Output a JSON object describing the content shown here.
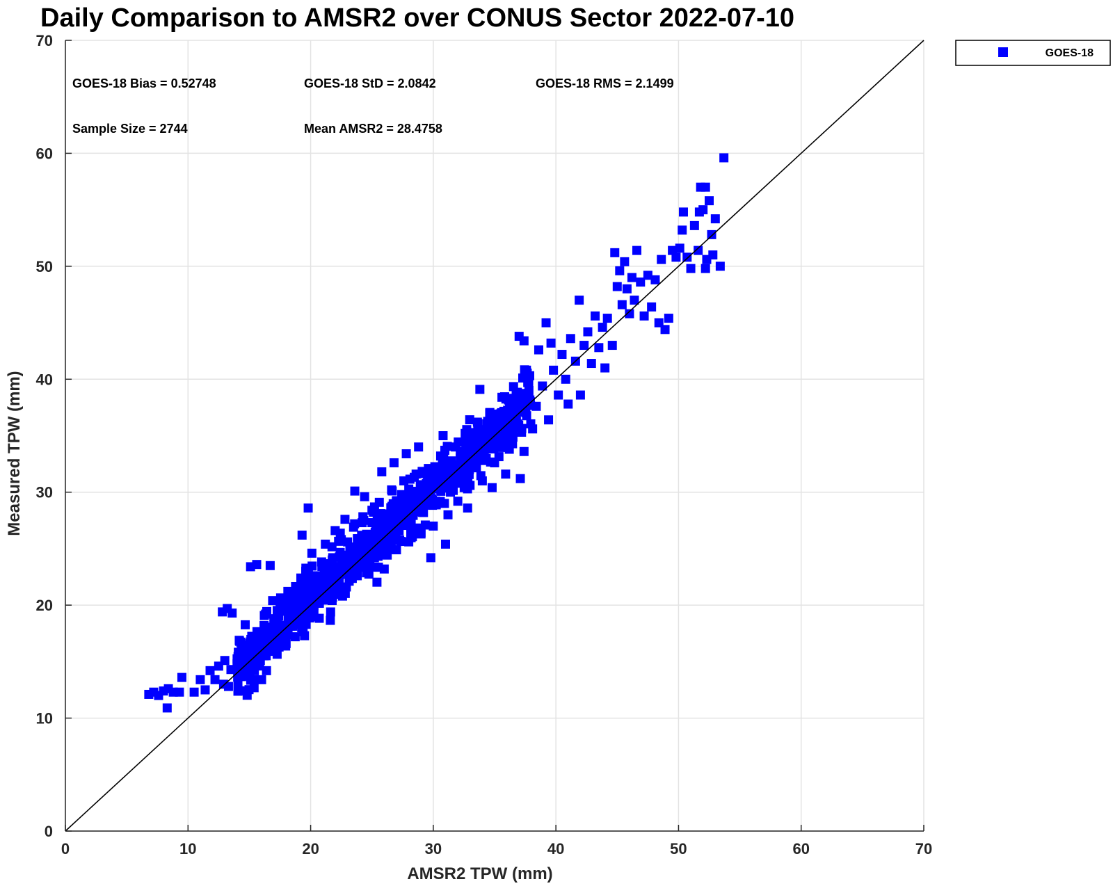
{
  "chart_data": {
    "type": "scatter",
    "title": "Daily Comparison to AMSR2 over CONUS Sector 2022-07-10",
    "xlabel": "AMSR2 TPW (mm)",
    "ylabel": "Measured TPW (mm)",
    "xlim": [
      0,
      70
    ],
    "ylim": [
      0,
      70
    ],
    "xticks": [
      "0",
      "10",
      "20",
      "30",
      "40",
      "50",
      "60",
      "70"
    ],
    "yticks": [
      "0",
      "10",
      "20",
      "30",
      "40",
      "50",
      "60",
      "70"
    ],
    "grid": true,
    "legend_position": "outside top-right",
    "series": [
      {
        "name": "GOES-18",
        "color": "#0000ff",
        "marker": "square",
        "points": [
          [
            6.8,
            12.1
          ],
          [
            7.2,
            12.3
          ],
          [
            7.6,
            12.0
          ],
          [
            8.0,
            12.4
          ],
          [
            8.4,
            12.6
          ],
          [
            8.3,
            10.9
          ],
          [
            8.8,
            12.3
          ],
          [
            9.5,
            13.6
          ],
          [
            9.3,
            12.3
          ],
          [
            10.5,
            12.3
          ],
          [
            11.0,
            13.4
          ],
          [
            11.4,
            12.5
          ],
          [
            11.8,
            14.2
          ],
          [
            12.2,
            13.4
          ],
          [
            12.8,
            19.4
          ],
          [
            13.2,
            19.7
          ],
          [
            13.6,
            19.3
          ],
          [
            12.5,
            14.6
          ],
          [
            12.9,
            13.0
          ],
          [
            13.3,
            12.8
          ],
          [
            13.0,
            15.1
          ],
          [
            13.5,
            14.3
          ],
          [
            14.0,
            14.8
          ],
          [
            14.4,
            15.3
          ],
          [
            14.2,
            16.8
          ],
          [
            14.8,
            16.1
          ],
          [
            15.2,
            15.4
          ],
          [
            15.6,
            16.9
          ],
          [
            15.3,
            13.4
          ],
          [
            16.0,
            13.4
          ],
          [
            16.4,
            14.2
          ],
          [
            15.1,
            23.4
          ],
          [
            15.6,
            23.6
          ],
          [
            16.7,
            23.5
          ],
          [
            15.8,
            17.6
          ],
          [
            16.2,
            18.2
          ],
          [
            16.6,
            17.4
          ],
          [
            17.0,
            18.8
          ],
          [
            17.3,
            17.6
          ],
          [
            17.8,
            19.6
          ],
          [
            17.5,
            16.7
          ],
          [
            18.0,
            16.6
          ],
          [
            16.9,
            20.4
          ],
          [
            17.6,
            20.0
          ],
          [
            18.2,
            21.0
          ],
          [
            18.5,
            19.8
          ],
          [
            18.8,
            20.6
          ],
          [
            18.4,
            18.5
          ],
          [
            19.0,
            21.5
          ],
          [
            19.2,
            22.4
          ],
          [
            19.5,
            20.2
          ],
          [
            19.8,
            21.8
          ],
          [
            19.6,
            23.0
          ],
          [
            19.8,
            28.6
          ],
          [
            19.3,
            26.2
          ],
          [
            20.1,
            24.6
          ],
          [
            20.4,
            22.6
          ],
          [
            20.8,
            22.0
          ],
          [
            21.0,
            23.6
          ],
          [
            21.2,
            25.4
          ],
          [
            21.5,
            21.2
          ],
          [
            21.8,
            24.2
          ],
          [
            22.0,
            26.6
          ],
          [
            22.2,
            22.3
          ],
          [
            22.5,
            25.8
          ],
          [
            22.8,
            27.6
          ],
          [
            22.6,
            20.8
          ],
          [
            23.0,
            23.4
          ],
          [
            23.2,
            25.0
          ],
          [
            23.5,
            26.9
          ],
          [
            23.6,
            30.1
          ],
          [
            23.8,
            22.6
          ],
          [
            24.0,
            24.8
          ],
          [
            24.2,
            27.3
          ],
          [
            24.4,
            29.6
          ],
          [
            24.6,
            23.6
          ],
          [
            24.8,
            26.0
          ],
          [
            25.0,
            28.4
          ],
          [
            25.2,
            24.2
          ],
          [
            25.4,
            26.6
          ],
          [
            25.6,
            29.1
          ],
          [
            25.8,
            31.8
          ],
          [
            26.0,
            23.2
          ],
          [
            26.2,
            25.4
          ],
          [
            26.4,
            27.8
          ],
          [
            26.6,
            30.2
          ],
          [
            26.8,
            32.6
          ],
          [
            27.0,
            24.9
          ],
          [
            27.2,
            26.9
          ],
          [
            27.4,
            28.9
          ],
          [
            27.6,
            31.0
          ],
          [
            27.8,
            33.4
          ],
          [
            28.0,
            25.6
          ],
          [
            28.2,
            27.4
          ],
          [
            28.4,
            29.6
          ],
          [
            28.6,
            31.6
          ],
          [
            28.8,
            34.0
          ],
          [
            29.0,
            26.3
          ],
          [
            29.2,
            28.2
          ],
          [
            29.4,
            30.2
          ],
          [
            29.6,
            32.1
          ],
          [
            29.8,
            24.2
          ],
          [
            30.0,
            27.0
          ],
          [
            30.2,
            29.2
          ],
          [
            30.4,
            31.2
          ],
          [
            30.6,
            33.2
          ],
          [
            30.8,
            35.0
          ],
          [
            31.0,
            25.4
          ],
          [
            31.2,
            28.0
          ],
          [
            31.4,
            30.0
          ],
          [
            31.6,
            32.0
          ],
          [
            31.8,
            34.0
          ],
          [
            32.0,
            29.2
          ],
          [
            32.2,
            31.0
          ],
          [
            32.4,
            33.0
          ],
          [
            32.6,
            35.2
          ],
          [
            32.8,
            28.6
          ],
          [
            33.0,
            30.6
          ],
          [
            33.2,
            32.6
          ],
          [
            33.4,
            34.4
          ],
          [
            33.6,
            36.2
          ],
          [
            33.8,
            39.1
          ],
          [
            34.0,
            31.0
          ],
          [
            34.2,
            33.0
          ],
          [
            34.4,
            35.0
          ],
          [
            34.6,
            37.0
          ],
          [
            34.8,
            30.4
          ],
          [
            35.0,
            32.6
          ],
          [
            35.2,
            34.6
          ],
          [
            35.4,
            36.4
          ],
          [
            35.6,
            38.4
          ],
          [
            35.9,
            31.6
          ],
          [
            36.2,
            33.8
          ],
          [
            36.5,
            35.8
          ],
          [
            36.8,
            37.8
          ],
          [
            37.1,
            31.2
          ],
          [
            37.4,
            33.6
          ],
          [
            37.0,
            43.8
          ],
          [
            37.4,
            43.4
          ],
          [
            37.6,
            40.8
          ],
          [
            37.8,
            39.0
          ],
          [
            38.1,
            35.6
          ],
          [
            38.4,
            37.6
          ],
          [
            38.6,
            42.6
          ],
          [
            38.9,
            39.4
          ],
          [
            39.2,
            45.0
          ],
          [
            39.6,
            43.2
          ],
          [
            39.4,
            36.4
          ],
          [
            39.8,
            40.8
          ],
          [
            40.2,
            38.6
          ],
          [
            40.5,
            42.2
          ],
          [
            40.8,
            40.0
          ],
          [
            41.0,
            37.8
          ],
          [
            41.2,
            43.6
          ],
          [
            41.6,
            41.6
          ],
          [
            41.9,
            47.0
          ],
          [
            42.0,
            38.6
          ],
          [
            42.3,
            43.0
          ],
          [
            42.6,
            44.2
          ],
          [
            42.9,
            41.4
          ],
          [
            43.2,
            45.6
          ],
          [
            43.5,
            42.8
          ],
          [
            43.8,
            44.6
          ],
          [
            44.0,
            41.0
          ],
          [
            44.2,
            45.4
          ],
          [
            44.6,
            43.0
          ],
          [
            44.8,
            51.2
          ],
          [
            45.0,
            48.2
          ],
          [
            45.2,
            49.6
          ],
          [
            45.4,
            46.6
          ],
          [
            45.6,
            50.4
          ],
          [
            45.8,
            48.0
          ],
          [
            46.0,
            45.8
          ],
          [
            46.2,
            49.0
          ],
          [
            46.4,
            47.0
          ],
          [
            46.6,
            51.4
          ],
          [
            46.9,
            48.6
          ],
          [
            47.2,
            45.6
          ],
          [
            47.5,
            49.2
          ],
          [
            47.8,
            46.4
          ],
          [
            48.1,
            48.8
          ],
          [
            48.4,
            45.0
          ],
          [
            48.6,
            50.6
          ],
          [
            48.9,
            44.4
          ],
          [
            49.2,
            45.4
          ],
          [
            49.5,
            51.4
          ],
          [
            49.8,
            50.8
          ],
          [
            50.1,
            51.6
          ],
          [
            50.3,
            53.2
          ],
          [
            50.4,
            54.8
          ],
          [
            50.7,
            50.8
          ],
          [
            51.0,
            49.8
          ],
          [
            51.3,
            53.6
          ],
          [
            51.6,
            51.4
          ],
          [
            51.7,
            54.8
          ],
          [
            51.8,
            57.0
          ],
          [
            52.0,
            55.0
          ],
          [
            52.2,
            57.0
          ],
          [
            52.3,
            50.6
          ],
          [
            52.2,
            49.8
          ],
          [
            52.5,
            55.8
          ],
          [
            52.7,
            52.8
          ],
          [
            52.8,
            51.0
          ],
          [
            53.0,
            54.2
          ],
          [
            53.4,
            50.0
          ],
          [
            53.7,
            59.6
          ]
        ]
      }
    ],
    "reference_line": {
      "type": "1:1",
      "from": [
        0,
        0
      ],
      "to": [
        70,
        70
      ],
      "color": "#000000"
    },
    "annotations": {
      "bias": "GOES-18 Bias = 0.52748",
      "std": "GOES-18 StD = 2.0842",
      "rms": "GOES-18 RMS = 2.1499",
      "sample_size": "Sample Size = 2744",
      "mean": "Mean AMSR2 = 28.4758"
    }
  }
}
